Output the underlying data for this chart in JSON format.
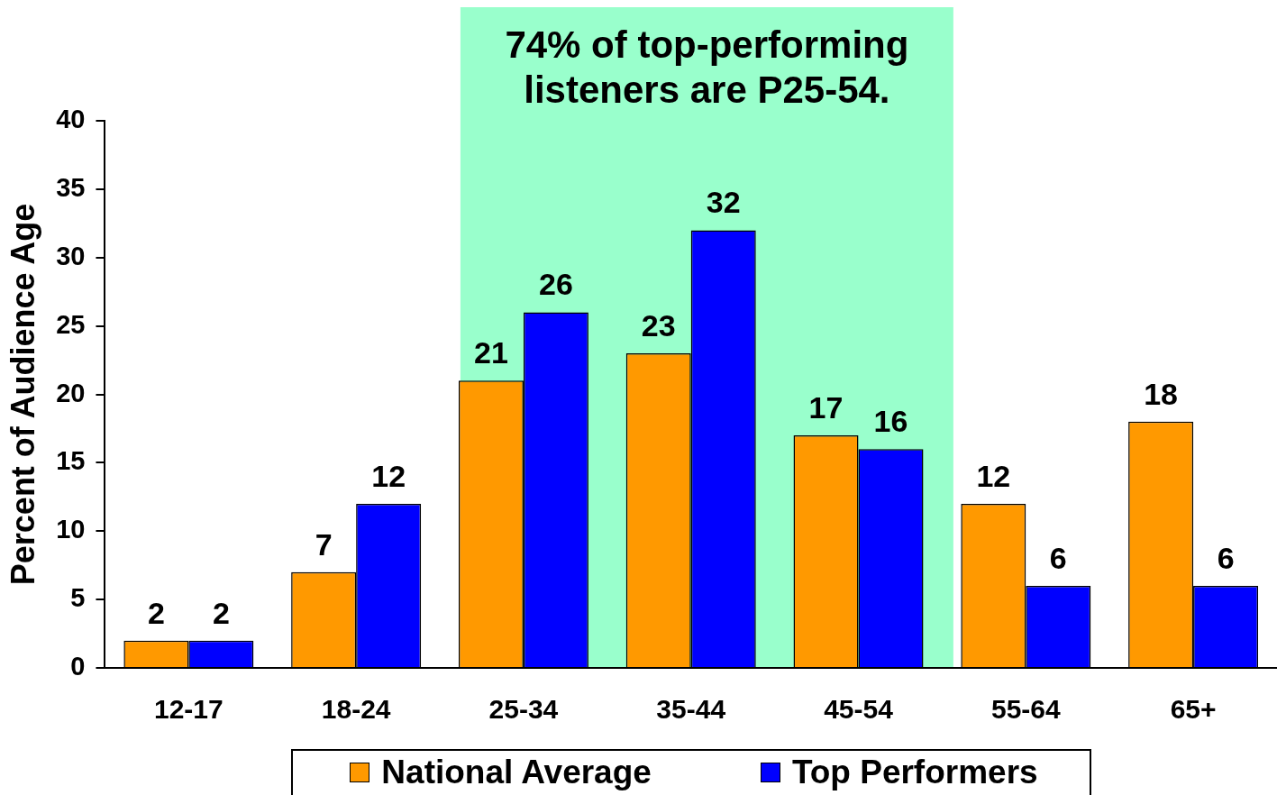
{
  "chart_data": {
    "type": "bar",
    "ylabel": "Percent of Audience Age",
    "categories": [
      "12-17",
      "18-24",
      "25-34",
      "35-44",
      "45-54",
      "55-64",
      "65+"
    ],
    "series": [
      {
        "name": "National Average",
        "color": "#ff9900",
        "values": [
          2,
          7,
          21,
          23,
          17,
          12,
          18
        ]
      },
      {
        "name": "Top Performers",
        "color": "#0000ff",
        "values": [
          2,
          12,
          26,
          32,
          16,
          6,
          6
        ]
      }
    ],
    "ylim": [
      0,
      40
    ],
    "yticks": [
      0,
      5,
      10,
      15,
      20,
      25,
      30,
      35,
      40
    ],
    "grid": false,
    "legend": "bottom",
    "data_labels": true,
    "bands": [
      {
        "axis": "x",
        "from": "25-34",
        "to": "45-54",
        "label": "74% of top-performing listeners are P25-54.",
        "color": "#99ffcc"
      }
    ]
  }
}
